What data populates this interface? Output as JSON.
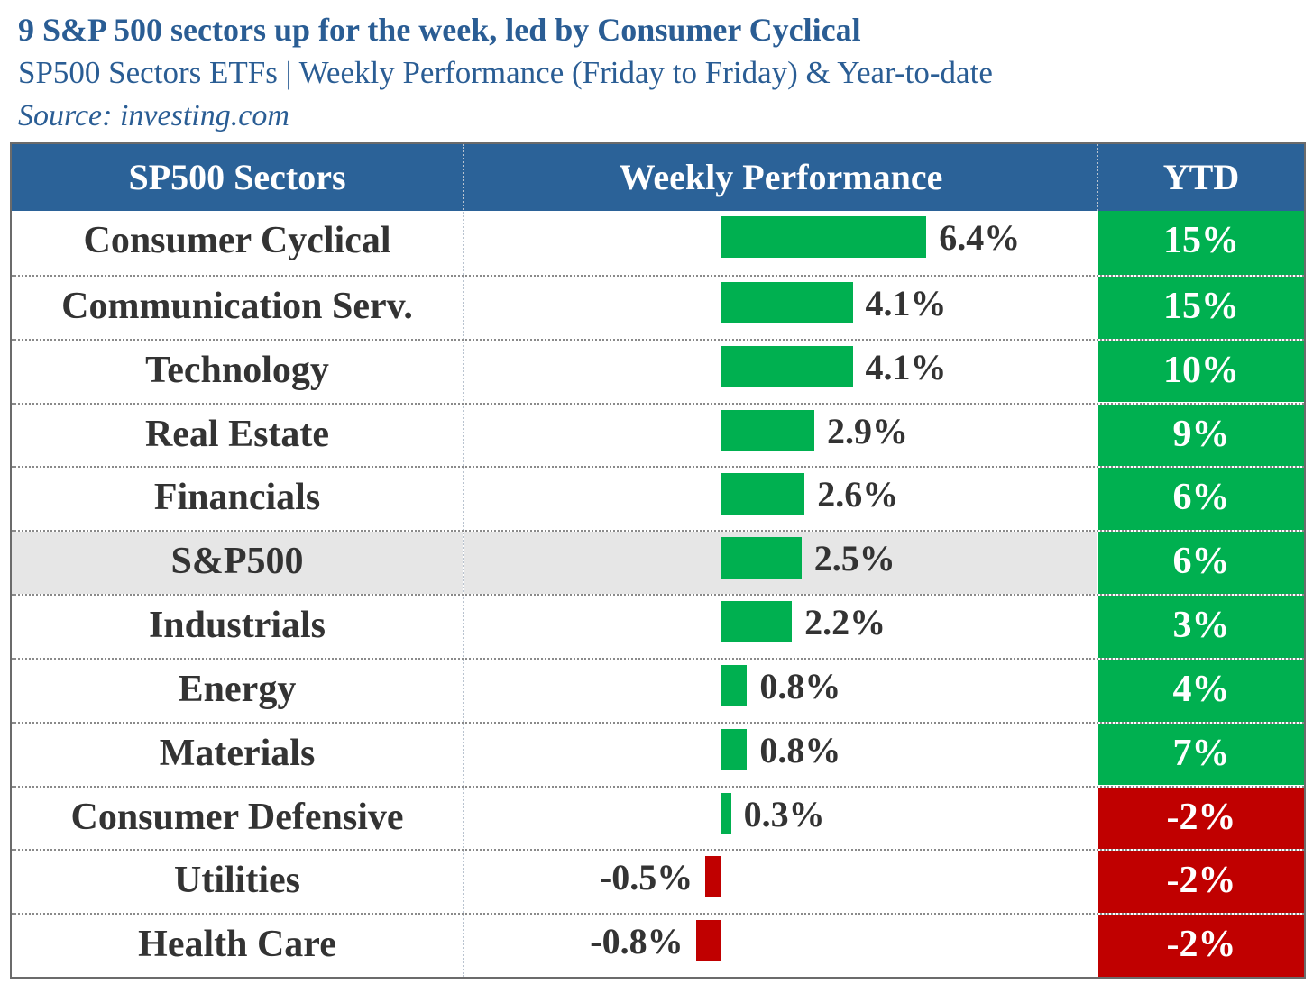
{
  "header": {
    "title": "9 S&P 500 sectors up for the week, led by Consumer Cyclical",
    "subtitle": "SP500 Sectors ETFs | Weekly Performance (Friday to Friday) & Year-to-date",
    "source": "Source: investing.com"
  },
  "table": {
    "columns": [
      "SP500 Sectors",
      "Weekly Performance",
      "YTD"
    ]
  },
  "colors": {
    "header_bg": "#2b6298",
    "title_text": "#2a5d94",
    "positive": "#00b050",
    "negative": "#c00000",
    "highlight_row": "#e6e6e6"
  },
  "chart_data": {
    "type": "bar",
    "title": "9 S&P 500 sectors up for the week, led by Consumer Cyclical",
    "subtitle": "SP500 Sectors ETFs | Weekly Performance (Friday to Friday) & Year-to-date",
    "categories": [
      "Consumer Cyclical",
      "Communication Serv.",
      "Technology",
      "Real Estate",
      "Financials",
      "S&P500",
      "Industrials",
      "Energy",
      "Materials",
      "Consumer Defensive",
      "Utilities",
      "Health Care"
    ],
    "series": [
      {
        "name": "Weekly Performance",
        "values": [
          6.4,
          4.1,
          4.1,
          2.9,
          2.6,
          2.5,
          2.2,
          0.8,
          0.8,
          0.3,
          -0.5,
          -0.8
        ],
        "labels": [
          "6.4%",
          "4.1%",
          "4.1%",
          "2.9%",
          "2.6%",
          "2.5%",
          "2.2%",
          "0.8%",
          "0.8%",
          "0.3%",
          "-0.5%",
          "-0.8%"
        ]
      },
      {
        "name": "YTD",
        "values": [
          15,
          15,
          10,
          9,
          6,
          6,
          3,
          4,
          7,
          -2,
          -2,
          -2
        ],
        "labels": [
          "15%",
          "15%",
          "10%",
          "9%",
          "6%",
          "6%",
          "3%",
          "4%",
          "7%",
          "-2%",
          "-2%",
          "-2%"
        ]
      }
    ],
    "highlighted_category": "S&P500",
    "orientation": "horizontal"
  }
}
